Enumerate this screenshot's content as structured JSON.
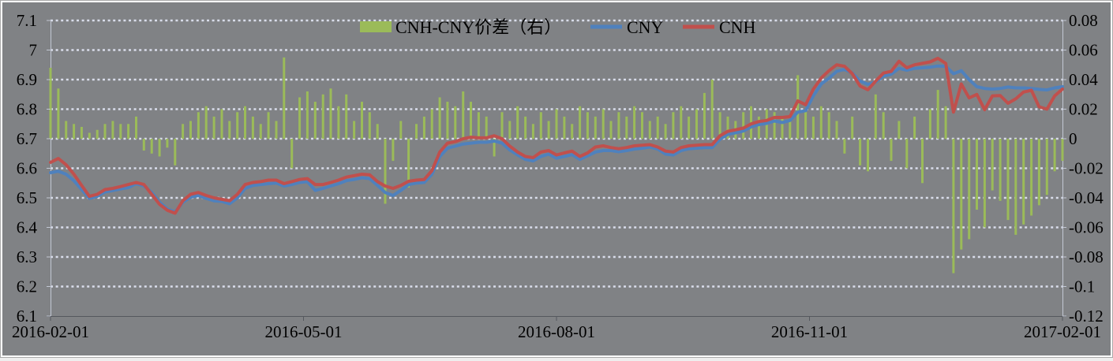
{
  "chart_data": {
    "type": "combo",
    "title": "",
    "legend_position": "top",
    "grid": "horizontal-dotted",
    "legend": [
      {
        "label": "CNH-CNY价差（右）",
        "swatch": "bar",
        "color": "#9bbb59"
      },
      {
        "label": "CNY",
        "swatch": "line",
        "color": "#4f81bd"
      },
      {
        "label": "CNH",
        "swatch": "line",
        "color": "#c0504d"
      }
    ],
    "x_axis": {
      "ticks": [
        "2016-02-01",
        "2016-05-01",
        "2016-08-01",
        "2016-11-01",
        "2017-02-01"
      ]
    },
    "left_axis": {
      "min": 6.1,
      "max": 7.1,
      "ticks": [
        "7.1",
        "7",
        "6.9",
        "6.8",
        "6.7",
        "6.6",
        "6.5",
        "6.4",
        "6.3",
        "6.2",
        "6.1"
      ]
    },
    "right_axis": {
      "min": -0.12,
      "max": 0.08,
      "ticks": [
        "0.08",
        "0.06",
        "0.04",
        "0.02",
        "0",
        "-0.02",
        "-0.04",
        "-0.06",
        "-0.08",
        "-0.1",
        "-0.12"
      ]
    },
    "series": [
      {
        "name": "CNH-CNY价差（右）",
        "type": "bar",
        "axis": "right",
        "color": "#9bbb59",
        "values": [
          0.048,
          0.034,
          0.012,
          0.01,
          0.008,
          0.004,
          0.006,
          0.01,
          0.012,
          0.01,
          0.01,
          0.015,
          -0.008,
          -0.01,
          -0.012,
          -0.006,
          -0.018,
          0.01,
          0.012,
          0.018,
          0.022,
          0.015,
          0.02,
          0.012,
          0.018,
          0.022,
          0.015,
          0.01,
          0.018,
          0.012,
          0.055,
          -0.02,
          0.028,
          0.032,
          0.025,
          0.03,
          0.034,
          0.022,
          0.03,
          0.012,
          0.025,
          0.018,
          0.01,
          -0.044,
          -0.015,
          0.012,
          -0.033,
          0.01,
          0.015,
          0.02,
          0.028,
          0.025,
          0.022,
          0.032,
          0.025,
          0.018,
          0.015,
          -0.012,
          0.018,
          0.012,
          0.022,
          0.015,
          0.01,
          0.018,
          0.012,
          0.02,
          0.015,
          0.01,
          0.022,
          0.018,
          0.015,
          0.02,
          0.012,
          0.018,
          0.015,
          0.022,
          0.018,
          0.012,
          0.015,
          0.01,
          0.018,
          0.022,
          0.015,
          0.02,
          0.031,
          0.04,
          0.018,
          0.015,
          0.012,
          0.018,
          0.022,
          0.015,
          0.02,
          0.018,
          0.015,
          0.012,
          0.043,
          0.02,
          0.015,
          0.022,
          0.018,
          0.012,
          -0.01,
          0.015,
          -0.018,
          -0.022,
          0.03,
          0.018,
          -0.015,
          0.012,
          -0.02,
          0.015,
          -0.03,
          0.02,
          0.033,
          0.022,
          -0.091,
          -0.075,
          -0.068,
          -0.048,
          -0.06,
          -0.035,
          -0.042,
          -0.055,
          -0.065,
          -0.058,
          -0.052,
          -0.045,
          -0.038,
          -0.022,
          -0.015
        ]
      },
      {
        "name": "CNY",
        "type": "line",
        "axis": "left",
        "color": "#4f81bd",
        "values": [
          6.585,
          6.59,
          6.58,
          6.558,
          6.528,
          6.498,
          6.505,
          6.52,
          6.525,
          6.53,
          6.535,
          6.548,
          6.54,
          6.518,
          6.485,
          6.462,
          6.452,
          6.485,
          6.502,
          6.508,
          6.498,
          6.49,
          6.488,
          6.48,
          6.5,
          6.532,
          6.542,
          6.545,
          6.548,
          6.55,
          6.54,
          6.545,
          6.552,
          6.555,
          6.525,
          6.532,
          6.54,
          6.548,
          6.558,
          6.562,
          6.568,
          6.565,
          6.542,
          6.518,
          6.508,
          6.525,
          6.545,
          6.55,
          6.552,
          6.58,
          6.64,
          6.668,
          6.675,
          6.682,
          6.685,
          6.688,
          6.688,
          6.692,
          6.685,
          6.662,
          6.645,
          6.63,
          6.625,
          6.64,
          6.648,
          6.634,
          6.64,
          6.646,
          6.63,
          6.642,
          6.655,
          6.66,
          6.66,
          6.656,
          6.66,
          6.665,
          6.668,
          6.672,
          6.665,
          6.648,
          6.645,
          6.66,
          6.666,
          6.668,
          6.67,
          6.67,
          6.698,
          6.715,
          6.72,
          6.726,
          6.74,
          6.748,
          6.752,
          6.76,
          6.755,
          6.762,
          6.79,
          6.795,
          6.845,
          6.885,
          6.905,
          6.928,
          6.935,
          6.922,
          6.895,
          6.884,
          6.892,
          6.912,
          6.918,
          6.938,
          6.932,
          6.938,
          6.94,
          6.942,
          6.946,
          6.945,
          6.92,
          6.93,
          6.9,
          6.876,
          6.87,
          6.868,
          6.87,
          6.875,
          6.872,
          6.872,
          6.87,
          6.867,
          6.865,
          6.872,
          6.876
        ]
      },
      {
        "name": "CNH",
        "type": "line",
        "axis": "left",
        "color": "#c0504d",
        "values": [
          6.62,
          6.633,
          6.612,
          6.58,
          6.542,
          6.505,
          6.512,
          6.528,
          6.532,
          6.538,
          6.545,
          6.552,
          6.545,
          6.512,
          6.478,
          6.458,
          6.448,
          6.49,
          6.512,
          6.518,
          6.508,
          6.5,
          6.495,
          6.49,
          6.512,
          6.545,
          6.552,
          6.555,
          6.56,
          6.56,
          6.548,
          6.555,
          6.562,
          6.565,
          6.545,
          6.545,
          6.552,
          6.56,
          6.57,
          6.575,
          6.58,
          6.578,
          6.555,
          6.54,
          6.532,
          6.542,
          6.556,
          6.56,
          6.562,
          6.592,
          6.655,
          6.685,
          6.69,
          6.7,
          6.705,
          6.703,
          6.703,
          6.71,
          6.7,
          6.675,
          6.655,
          6.64,
          6.636,
          6.655,
          6.66,
          6.645,
          6.652,
          6.658,
          6.64,
          6.652,
          6.672,
          6.676,
          6.67,
          6.666,
          6.67,
          6.676,
          6.678,
          6.68,
          6.672,
          6.658,
          6.655,
          6.67,
          6.676,
          6.678,
          6.68,
          6.68,
          6.71,
          6.725,
          6.73,
          6.736,
          6.75,
          6.758,
          6.762,
          6.772,
          6.772,
          6.775,
          6.828,
          6.815,
          6.868,
          6.905,
          6.93,
          6.95,
          6.945,
          6.92,
          6.878,
          6.866,
          6.895,
          6.922,
          6.928,
          6.962,
          6.94,
          6.95,
          6.955,
          6.96,
          6.972,
          6.955,
          6.79,
          6.885,
          6.838,
          6.85,
          6.798,
          6.845,
          6.846,
          6.82,
          6.835,
          6.858,
          6.864,
          6.808,
          6.8,
          6.845,
          6.868
        ]
      }
    ]
  },
  "colors": {
    "background": "#808285",
    "gridline": "#d9ddeb",
    "bottom_axis_line": "#55585e",
    "side_axis_line": "#c3c8d4",
    "text": "#000000",
    "frame_inner": "#ffffff",
    "frame_outer": "#a9a9a9"
  }
}
